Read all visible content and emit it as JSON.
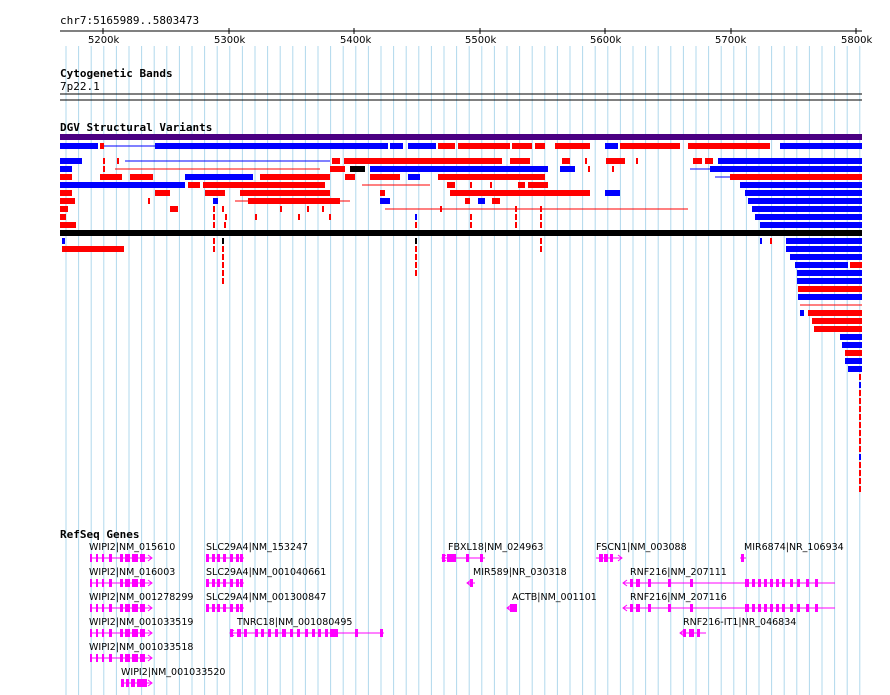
{
  "location": "chr7:5165989..5803473",
  "ruler": {
    "ticks": [
      "5200k",
      "5300k",
      "5400k",
      "5500k",
      "5600k",
      "5700k",
      "5800k"
    ]
  },
  "cytoband": {
    "title": "Cytogenetic Bands",
    "band": "7p22.1"
  },
  "dgv": {
    "title": "DGV Structural Variants"
  },
  "refseq": {
    "title": "RefSeq Genes",
    "genes": [
      "WIPI2|NM_015610",
      "WIPI2|NM_016003",
      "WIPI2|NM_001278299",
      "WIPI2|NM_001033519",
      "WIPI2|NM_001033518",
      "WIPI2|NM_001033520",
      "SLC29A4|NM_153247",
      "SLC29A4|NM_001040661",
      "SLC29A4|NM_001300847",
      "TNRC18|NM_001080495",
      "FBXL18|NM_024963",
      "MIR589|NR_030318",
      "ACTB|NM_001101",
      "FSCN1|NM_003088",
      "RNF216|NM_207111",
      "RNF216|NM_207116",
      "RNF216-IT1|NR_046834",
      "MIR6874|NR_106934"
    ]
  },
  "colors": {
    "grid": "#b0d8ec",
    "gain": "#ff0000",
    "loss": "#0000ff",
    "complex": "#000000",
    "summary": "#4b0082",
    "gene": "#ff00ff"
  }
}
